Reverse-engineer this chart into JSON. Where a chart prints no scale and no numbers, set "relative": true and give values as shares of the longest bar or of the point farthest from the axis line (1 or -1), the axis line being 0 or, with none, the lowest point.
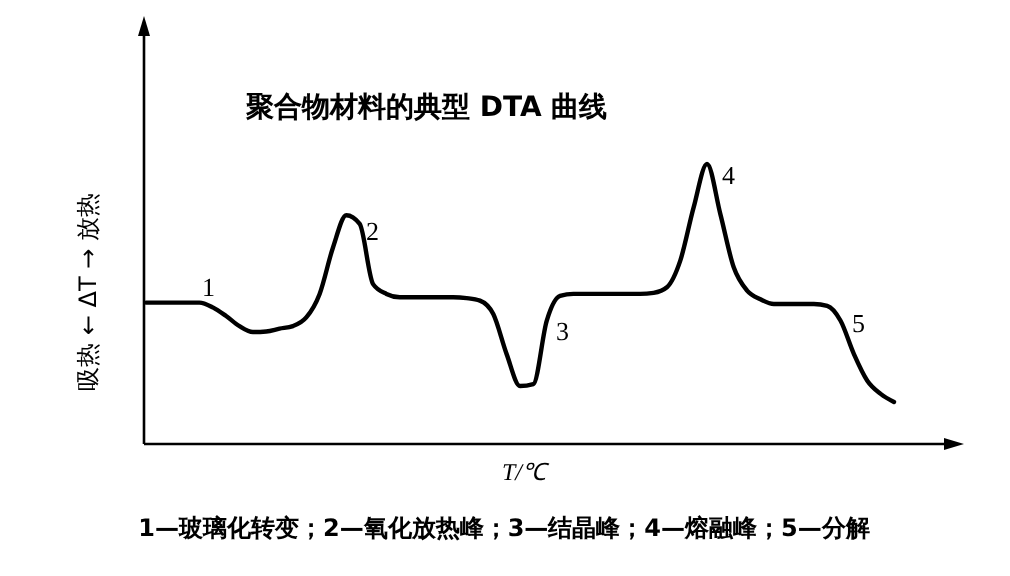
{
  "chart_data": {
    "type": "line",
    "relative": true,
    "title": "聚合物材料的典型 DTA 曲线",
    "xlabel": "T/℃",
    "ylabel": "吸热 ← ΔT → 放热",
    "annotations": [
      "1",
      "2",
      "3",
      "4",
      "5",
      "1—玻璃化转变；2—氧化放热峰；3—结晶峰；4—熔融峰；5—分解"
    ],
    "categories": [
      null,
      null,
      null,
      null,
      null,
      null,
      null,
      null,
      null,
      null,
      null,
      null,
      null,
      null,
      null,
      null,
      null,
      null,
      null,
      null,
      null,
      null,
      null,
      null,
      null,
      null,
      null,
      null,
      null,
      null,
      null,
      null,
      null,
      null,
      null,
      null,
      null,
      null,
      null,
      null,
      null,
      null,
      null,
      null,
      null,
      null,
      null,
      null,
      null,
      null,
      null,
      null,
      null,
      null,
      null,
      null,
      null
    ],
    "series": [
      {
        "color": "#000000",
        "values": [
          0.505,
          0.505,
          0.505,
          0.505,
          0.505,
          0.488,
          0.457,
          0.421,
          0.4,
          0.402,
          0.412,
          0.421,
          0.452,
          0.536,
          0.702,
          0.817,
          0.786,
          0.571,
          0.536,
          0.524,
          0.524,
          0.524,
          0.524,
          0.524,
          0.521,
          0.512,
          0.464,
          0.321,
          0.207,
          0.214,
          0.44,
          0.529,
          0.536,
          0.536,
          0.536,
          0.536,
          0.536,
          0.536,
          0.54,
          0.56,
          0.655,
          0.845,
          1,
          0.821,
          0.631,
          0.548,
          0.517,
          0.5,
          0.5,
          0.5,
          0.5,
          0.493,
          0.44,
          0.321,
          0.226,
          0.179,
          0.15
        ]
      }
    ]
  }
}
